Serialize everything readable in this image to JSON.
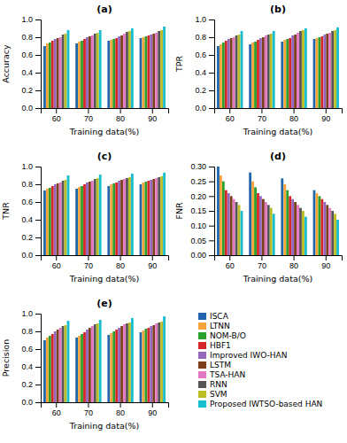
{
  "chart_data": [
    {
      "type": "bar",
      "title": "(a)",
      "x_label": "Training data(%)",
      "y_label": "Accuracy",
      "categories": [
        "60",
        "70",
        "80",
        "90"
      ],
      "ylim": [
        0.0,
        1.0
      ],
      "yticks": [
        {
          "value": 0.0,
          "label": "0.0"
        },
        0.2,
        0.4,
        0.6,
        0.8,
        {
          "value": 1.0,
          "label": "1.0"
        }
      ],
      "series": [
        {
          "color": "#2166ac",
          "values": [
            0.7,
            0.73,
            0.76,
            0.79
          ]
        },
        {
          "color": "#f4a43a",
          "values": [
            0.73,
            0.75,
            0.77,
            0.8
          ]
        },
        {
          "color": "#2ca02c",
          "values": [
            0.74,
            0.76,
            0.78,
            0.81
          ]
        },
        {
          "color": "#d62728",
          "values": [
            0.76,
            0.78,
            0.79,
            0.82
          ]
        },
        {
          "color": "#9467bd",
          "values": [
            0.78,
            0.8,
            0.81,
            0.83
          ]
        },
        {
          "color": "#7b3f1e",
          "values": [
            0.79,
            0.81,
            0.82,
            0.84
          ]
        },
        {
          "color": "#e377c2",
          "values": [
            0.8,
            0.82,
            0.84,
            0.85
          ]
        },
        {
          "color": "#555555",
          "values": [
            0.83,
            0.84,
            0.86,
            0.87
          ]
        },
        {
          "color": "#bcbd22",
          "values": [
            0.84,
            0.85,
            0.87,
            0.88
          ]
        },
        {
          "color": "#17becf",
          "values": [
            0.88,
            0.88,
            0.9,
            0.92
          ]
        }
      ]
    },
    {
      "type": "bar",
      "title": "(b)",
      "x_label": "Training data(%)",
      "y_label": "TPR",
      "categories": [
        "60",
        "70",
        "80",
        "90"
      ],
      "ylim": [
        0.0,
        1.0
      ],
      "yticks": [
        {
          "value": 0.0,
          "label": "0.0"
        },
        0.2,
        0.4,
        0.6,
        0.8,
        {
          "value": 1.0,
          "label": "1.0"
        }
      ],
      "series": [
        {
          "color": "#2166ac",
          "values": [
            0.7,
            0.72,
            0.75,
            0.78
          ]
        },
        {
          "color": "#f4a43a",
          "values": [
            0.72,
            0.74,
            0.77,
            0.79
          ]
        },
        {
          "color": "#2ca02c",
          "values": [
            0.74,
            0.75,
            0.78,
            0.8
          ]
        },
        {
          "color": "#d62728",
          "values": [
            0.76,
            0.77,
            0.79,
            0.81
          ]
        },
        {
          "color": "#9467bd",
          "values": [
            0.78,
            0.79,
            0.82,
            0.83
          ]
        },
        {
          "color": "#7b3f1e",
          "values": [
            0.79,
            0.8,
            0.83,
            0.84
          ]
        },
        {
          "color": "#e377c2",
          "values": [
            0.8,
            0.82,
            0.85,
            0.85
          ]
        },
        {
          "color": "#555555",
          "values": [
            0.82,
            0.83,
            0.87,
            0.87
          ]
        },
        {
          "color": "#bcbd22",
          "values": [
            0.83,
            0.84,
            0.88,
            0.88
          ]
        },
        {
          "color": "#17becf",
          "values": [
            0.87,
            0.87,
            0.9,
            0.91
          ]
        }
      ]
    },
    {
      "type": "bar",
      "title": "(c)",
      "x_label": "Training data(%)",
      "y_label": "TNR",
      "categories": [
        "60",
        "70",
        "80",
        "90"
      ],
      "ylim": [
        0.0,
        1.0
      ],
      "yticks": [
        {
          "value": 0.0,
          "label": "0.0"
        },
        0.2,
        0.4,
        0.6,
        0.8,
        {
          "value": 1.0,
          "label": "1.0"
        }
      ],
      "series": [
        {
          "color": "#2166ac",
          "values": [
            0.73,
            0.75,
            0.78,
            0.8
          ]
        },
        {
          "color": "#f4a43a",
          "values": [
            0.75,
            0.77,
            0.8,
            0.82
          ]
        },
        {
          "color": "#2ca02c",
          "values": [
            0.76,
            0.78,
            0.81,
            0.83
          ]
        },
        {
          "color": "#d62728",
          "values": [
            0.78,
            0.8,
            0.82,
            0.84
          ]
        },
        {
          "color": "#9467bd",
          "values": [
            0.8,
            0.82,
            0.84,
            0.85
          ]
        },
        {
          "color": "#7b3f1e",
          "values": [
            0.81,
            0.83,
            0.85,
            0.86
          ]
        },
        {
          "color": "#e377c2",
          "values": [
            0.82,
            0.84,
            0.86,
            0.87
          ]
        },
        {
          "color": "#555555",
          "values": [
            0.84,
            0.86,
            0.87,
            0.88
          ]
        },
        {
          "color": "#bcbd22",
          "values": [
            0.85,
            0.87,
            0.88,
            0.89
          ]
        },
        {
          "color": "#17becf",
          "values": [
            0.9,
            0.91,
            0.92,
            0.93
          ]
        }
      ]
    },
    {
      "type": "bar",
      "title": "(d)",
      "x_label": "Training data(%)",
      "y_label": "FNR",
      "categories": [
        "60",
        "70",
        "80",
        "90"
      ],
      "ylim": [
        0.0,
        0.3
      ],
      "yticks": [
        {
          "value": 0.0,
          "label": "0.00"
        },
        0.05,
        {
          "value": 0.1,
          "label": "0.10"
        },
        0.15,
        {
          "value": 0.2,
          "label": "0.20"
        },
        0.25,
        {
          "value": 0.3,
          "label": "0.30"
        }
      ],
      "series": [
        {
          "color": "#2166ac",
          "values": [
            0.3,
            0.28,
            0.26,
            0.22
          ]
        },
        {
          "color": "#f4a43a",
          "values": [
            0.27,
            0.25,
            0.24,
            0.21
          ]
        },
        {
          "color": "#2ca02c",
          "values": [
            0.25,
            0.23,
            0.22,
            0.2
          ]
        },
        {
          "color": "#d62728",
          "values": [
            0.22,
            0.21,
            0.2,
            0.19
          ]
        },
        {
          "color": "#9467bd",
          "values": [
            0.21,
            0.2,
            0.19,
            0.18
          ]
        },
        {
          "color": "#7b3f1e",
          "values": [
            0.2,
            0.19,
            0.18,
            0.17
          ]
        },
        {
          "color": "#e377c2",
          "values": [
            0.19,
            0.18,
            0.17,
            0.16
          ]
        },
        {
          "color": "#555555",
          "values": [
            0.18,
            0.17,
            0.16,
            0.15
          ]
        },
        {
          "color": "#bcbd22",
          "values": [
            0.17,
            0.16,
            0.15,
            0.14
          ]
        },
        {
          "color": "#17becf",
          "values": [
            0.15,
            0.14,
            0.13,
            0.12
          ]
        }
      ]
    },
    {
      "type": "bar",
      "title": "(e)",
      "x_label": "Training data(%)",
      "y_label": "Precision",
      "categories": [
        "60",
        "70",
        "80",
        "90"
      ],
      "ylim": [
        0.0,
        1.0
      ],
      "yticks": [
        {
          "value": 0.0,
          "label": "0.0"
        },
        0.2,
        0.4,
        0.6,
        0.8,
        {
          "value": 1.0,
          "label": "1.0"
        }
      ],
      "legend": "right",
      "series": [
        {
          "name": "ISCA",
          "color": "#2166ac",
          "values": [
            0.7,
            0.73,
            0.76,
            0.79
          ]
        },
        {
          "name": "LTNN",
          "color": "#f4a43a",
          "values": [
            0.73,
            0.75,
            0.78,
            0.81
          ]
        },
        {
          "name": "NOM-B/O",
          "color": "#2ca02c",
          "values": [
            0.75,
            0.77,
            0.8,
            0.83
          ]
        },
        {
          "name": "HBF1",
          "color": "#d62728",
          "values": [
            0.77,
            0.79,
            0.82,
            0.84
          ]
        },
        {
          "name": "Improved IWO-HAN",
          "color": "#9467bd",
          "values": [
            0.8,
            0.82,
            0.84,
            0.86
          ]
        },
        {
          "name": "LSTM",
          "color": "#7b3f1e",
          "values": [
            0.82,
            0.84,
            0.86,
            0.87
          ]
        },
        {
          "name": "TSA-HAN",
          "color": "#e377c2",
          "values": [
            0.84,
            0.86,
            0.88,
            0.89
          ]
        },
        {
          "name": "RNN",
          "color": "#555555",
          "values": [
            0.86,
            0.88,
            0.89,
            0.9
          ]
        },
        {
          "name": "SVM",
          "color": "#bcbd22",
          "values": [
            0.87,
            0.89,
            0.9,
            0.91
          ]
        },
        {
          "name": "Proposed IWTSO-based HAN",
          "color": "#17becf",
          "values": [
            0.92,
            0.93,
            0.95,
            0.97
          ]
        }
      ]
    }
  ]
}
